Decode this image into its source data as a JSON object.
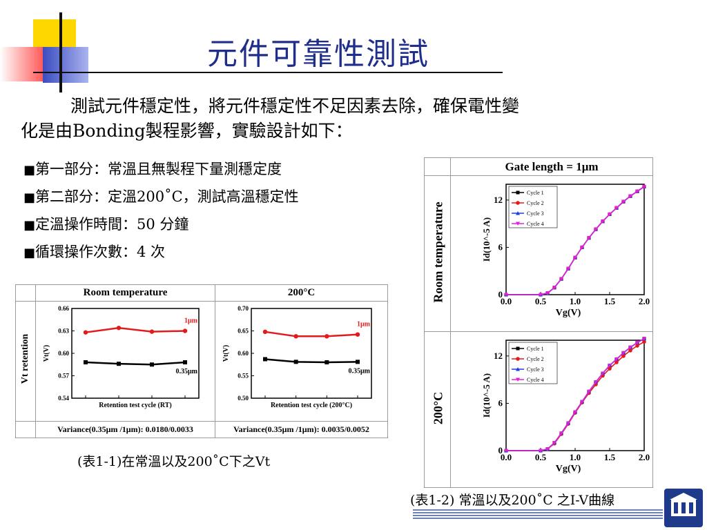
{
  "slide": {
    "title": "元件可靠性測試",
    "intro_line1": "測試元件穩定性，將元件穩定性不足因素去除，確保電性變",
    "intro_line2": "化是由Bonding製程影響，實驗設計如下：",
    "bullet_marker": "■",
    "bullets": [
      "第一部分：常溫且無製程下量測穩定度",
      "第二部分：定溫200˚C，測試高溫穩定性",
      "定溫操作時間：50 分鐘",
      "循環操作次數：4 次"
    ]
  },
  "table1": {
    "header_rt": "Room temperature",
    "header_200": "200°C",
    "row_label": "Vt retention",
    "variance_rt": "Variance(0.35μm /1μm): 0.0180/0.0033",
    "variance_200": "Variance(0.35μm /1μm): 0.0035/0.0052",
    "caption": "(表1-1)在常溫以及200˚C下之Vt"
  },
  "table2": {
    "header": "Gate length = 1μm",
    "row_rt": "Room temperature",
    "row_200": "200°C",
    "caption": "(表1-2) 常溫以及200˚C 之I-V曲線"
  },
  "chart_data": [
    {
      "type": "line",
      "panel": "Vt retention — Room temperature",
      "xlabel": "Retention test cycle (RT)",
      "ylabel": "Vt(V)",
      "ylim": [
        0.54,
        0.66
      ],
      "yticks": [
        "0.54",
        "0.57",
        "0.60",
        "0.63",
        "0.66"
      ],
      "x": [
        1,
        2,
        3,
        4
      ],
      "series": [
        {
          "name": "1μm",
          "color": "#e31a1c",
          "values": [
            0.628,
            0.634,
            0.629,
            0.63
          ]
        },
        {
          "name": "0.35μm",
          "color": "#000000",
          "values": [
            0.588,
            0.586,
            0.585,
            0.588
          ]
        }
      ]
    },
    {
      "type": "line",
      "panel": "Vt retention — 200°C",
      "xlabel": "Retention test cycle (200°C)",
      "ylabel": "Vt(V)",
      "ylim": [
        0.5,
        0.7
      ],
      "yticks": [
        "0.50",
        "0.55",
        "0.60",
        "0.65",
        "0.70"
      ],
      "x": [
        1,
        2,
        3,
        4
      ],
      "series": [
        {
          "name": "1μm",
          "color": "#e31a1c",
          "values": [
            0.648,
            0.638,
            0.638,
            0.642
          ]
        },
        {
          "name": "0.35μm",
          "color": "#000000",
          "values": [
            0.587,
            0.581,
            0.58,
            0.581
          ]
        }
      ]
    },
    {
      "type": "line",
      "panel": "I-V — Room temperature",
      "xlabel": "Vg(V)",
      "ylabel": "Id(10^-5 A)",
      "xlim": [
        0,
        2.0
      ],
      "ylim": [
        0,
        14
      ],
      "xticks": [
        "0.0",
        "0.5",
        "1.0",
        "1.5",
        "2.0"
      ],
      "yticks": [
        "0",
        "6",
        "12"
      ],
      "x": [
        0.0,
        0.5,
        0.6,
        0.7,
        0.8,
        0.9,
        1.0,
        1.1,
        1.2,
        1.3,
        1.4,
        1.5,
        1.6,
        1.7,
        1.8,
        1.9,
        2.0
      ],
      "series": [
        {
          "name": "Cycle 1",
          "color": "#000000",
          "marker": "square",
          "values": [
            0,
            0,
            0.2,
            0.9,
            2.0,
            3.3,
            4.7,
            6.0,
            7.2,
            8.3,
            9.3,
            10.2,
            11.0,
            11.8,
            12.5,
            13.1,
            13.7
          ]
        },
        {
          "name": "Cycle 2",
          "color": "#e31a1c",
          "marker": "circle",
          "values": [
            0,
            0,
            0.2,
            0.9,
            2.0,
            3.3,
            4.7,
            6.0,
            7.2,
            8.3,
            9.3,
            10.2,
            11.0,
            11.8,
            12.5,
            13.1,
            13.7
          ]
        },
        {
          "name": "Cycle 3",
          "color": "#1f3fd6",
          "marker": "triangle",
          "values": [
            0,
            0,
            0.2,
            0.9,
            2.0,
            3.3,
            4.7,
            6.0,
            7.2,
            8.3,
            9.3,
            10.2,
            11.0,
            11.8,
            12.5,
            13.1,
            13.7
          ]
        },
        {
          "name": "Cycle 4",
          "color": "#e020e0",
          "marker": "triangle-down",
          "values": [
            0,
            0,
            0.2,
            0.9,
            2.0,
            3.3,
            4.7,
            6.0,
            7.2,
            8.3,
            9.3,
            10.2,
            11.0,
            11.8,
            12.5,
            13.1,
            13.7
          ]
        }
      ]
    },
    {
      "type": "line",
      "panel": "I-V — 200°C",
      "xlabel": "Vg(V)",
      "ylabel": "Id(10^-5 A)",
      "xlim": [
        0,
        2.0
      ],
      "ylim": [
        0,
        14
      ],
      "xticks": [
        "0.0",
        "0.5",
        "1.0",
        "1.5",
        "2.0"
      ],
      "yticks": [
        "0",
        "6",
        "12"
      ],
      "x": [
        0.0,
        0.5,
        0.6,
        0.7,
        0.8,
        0.9,
        1.0,
        1.1,
        1.2,
        1.3,
        1.4,
        1.5,
        1.6,
        1.7,
        1.8,
        1.9,
        2.0
      ],
      "series": [
        {
          "name": "Cycle 1",
          "color": "#000000",
          "marker": "square",
          "values": [
            0,
            0,
            0.2,
            1.0,
            2.2,
            3.5,
            4.9,
            6.2,
            7.5,
            8.7,
            9.8,
            10.8,
            11.6,
            12.4,
            13.1,
            13.7,
            14.2
          ]
        },
        {
          "name": "Cycle 2",
          "color": "#e31a1c",
          "marker": "circle",
          "values": [
            0,
            0,
            0.2,
            0.9,
            2.1,
            3.4,
            4.8,
            6.1,
            7.3,
            8.4,
            9.5,
            10.4,
            11.2,
            12.0,
            12.7,
            13.3,
            13.8
          ]
        },
        {
          "name": "Cycle 3",
          "color": "#1f3fd6",
          "marker": "triangle",
          "values": [
            0,
            0,
            0.2,
            1.0,
            2.2,
            3.5,
            4.9,
            6.2,
            7.5,
            8.7,
            9.8,
            10.8,
            11.6,
            12.4,
            13.1,
            13.7,
            14.2
          ]
        },
        {
          "name": "Cycle 4",
          "color": "#e020e0",
          "marker": "triangle-down",
          "values": [
            0,
            0,
            0.2,
            1.0,
            2.2,
            3.5,
            4.9,
            6.2,
            7.5,
            8.7,
            9.8,
            10.8,
            11.6,
            12.4,
            13.1,
            13.7,
            14.2
          ]
        }
      ]
    }
  ]
}
